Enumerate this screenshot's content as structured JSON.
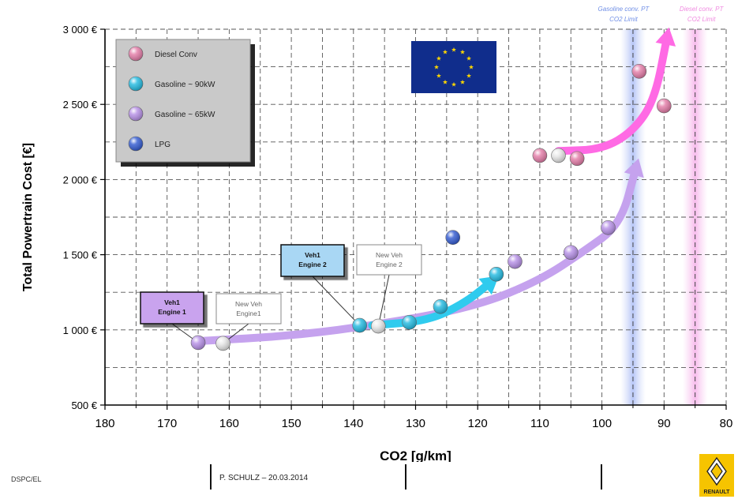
{
  "chart_data": {
    "type": "scatter",
    "xlabel": "CO2 [g/km]",
    "ylabel": "Total Powertrain Cost [€]",
    "x_reversed": true,
    "xlim": [
      80,
      180
    ],
    "ylim": [
      500,
      3000
    ],
    "x_ticks": [
      "180",
      "170",
      "160",
      "150",
      "140",
      "130",
      "120",
      "110",
      "100",
      "90",
      "80"
    ],
    "y_ticks": [
      "500 €",
      "1 000 €",
      "1 500 €",
      "2 000 €",
      "2 500 €",
      "3 000 €"
    ],
    "grid": "dashed",
    "legend_position": "top-left",
    "series": [
      {
        "name": "Diesel Conv",
        "color": "#e37aa6",
        "points": [
          [
            110,
            2160
          ],
          [
            104,
            2140
          ],
          [
            94,
            2720
          ],
          [
            90,
            2490
          ]
        ]
      },
      {
        "name": "Gasoline ~ 90kW",
        "color": "#1fb9e0",
        "points": [
          [
            139,
            1030
          ],
          [
            131,
            1050
          ],
          [
            126,
            1155
          ],
          [
            117,
            1370
          ]
        ]
      },
      {
        "name": "Gasoline ~ 65kW",
        "color": "#b58ee6",
        "points": [
          [
            165,
            915
          ],
          [
            114,
            1455
          ],
          [
            105,
            1515
          ],
          [
            99,
            1680
          ]
        ]
      },
      {
        "name": "LPG",
        "color": "#2f58d0",
        "points": [
          [
            124,
            1615
          ]
        ]
      },
      {
        "name": "",
        "color": "#e6e6e6",
        "points": [
          [
            161,
            910
          ],
          [
            136,
            1025
          ],
          [
            107,
            2160
          ]
        ]
      }
    ],
    "co2_limits": [
      {
        "label": "Gasoline conv. PT CO2 Limit",
        "x": 95,
        "color": "#6f8ee6"
      },
      {
        "label": "Diesel conv. PT CO2 Limit",
        "x": 85,
        "color": "#f08ae0"
      }
    ],
    "trend_arrows": [
      {
        "color": "#c5a2ee",
        "points": [
          [
            165,
            925
          ],
          [
            150,
            960
          ],
          [
            135,
            1040
          ],
          [
            120,
            1160
          ],
          [
            110,
            1330
          ],
          [
            103,
            1520
          ],
          [
            97,
            1700
          ],
          [
            94.5,
            2080
          ]
        ]
      },
      {
        "color": "#2fcbee",
        "points": [
          [
            137,
            1030
          ],
          [
            128,
            1060
          ],
          [
            122,
            1180
          ],
          [
            117.8,
            1320
          ]
        ]
      },
      {
        "color": "#ff6ae4",
        "points": [
          [
            107,
            2190
          ],
          [
            100,
            2200
          ],
          [
            95,
            2320
          ],
          [
            91.5,
            2530
          ],
          [
            89.5,
            2950
          ]
        ]
      }
    ],
    "annotations": [
      {
        "text": [
          "Veh1",
          "Engine 1"
        ],
        "style": "dark",
        "fill": "#c9a3ee",
        "anchor": [
          165,
          915
        ]
      },
      {
        "text": [
          "New Veh",
          "Engine1"
        ],
        "style": "light",
        "fill": "#ffffff",
        "anchor": [
          161,
          910
        ]
      },
      {
        "text": [
          "Veh1",
          "Engine 2"
        ],
        "style": "dark",
        "fill": "#a9d7f4",
        "anchor": [
          139,
          1030
        ]
      },
      {
        "text": [
          "New Veh",
          "Engine 2"
        ],
        "style": "light",
        "fill": "#ffffff",
        "anchor": [
          136,
          1025
        ]
      }
    ],
    "eu_flag": true
  },
  "footer": {
    "department": "DSPC/EL",
    "author": "P. SCHULZ – 20.03.2014",
    "brand": "RENAULT"
  }
}
